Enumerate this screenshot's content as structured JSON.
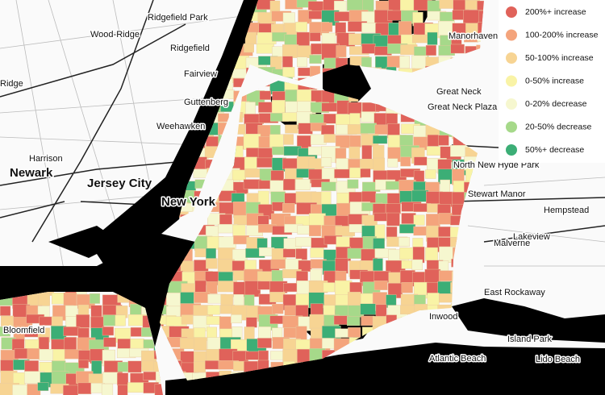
{
  "legend": [
    {
      "label": "200%+ increase",
      "color": "#e0625a"
    },
    {
      "label": "100-200% increase",
      "color": "#f4a47c"
    },
    {
      "label": "50-100% increase",
      "color": "#f7d493"
    },
    {
      "label": "0-50% increase",
      "color": "#f9f3a6"
    },
    {
      "label": "0-20% decrease",
      "color": "#f6f7cf"
    },
    {
      "label": "20-50% decrease",
      "color": "#a6d98a"
    },
    {
      "label": "50%+ decrease",
      "color": "#3cae76"
    }
  ],
  "places": [
    "Ridgefield Park",
    "Wood-Ridge",
    "Ridgefield",
    "Ridge",
    "Fairview",
    "Guttenberg",
    "Weehawken",
    "Harrison",
    "Newark",
    "Jersey City",
    "New York",
    "Manorhaven",
    "Great Neck",
    "Great Neck Plaza",
    "North New Hyde Park",
    "Stewart Manor",
    "Hempstead",
    "Lakeview",
    "Malverne",
    "East Rockaway",
    "Inwood",
    "Island Park",
    "Atlantic Beach",
    "Lido Beach",
    "Bloomfield"
  ]
}
